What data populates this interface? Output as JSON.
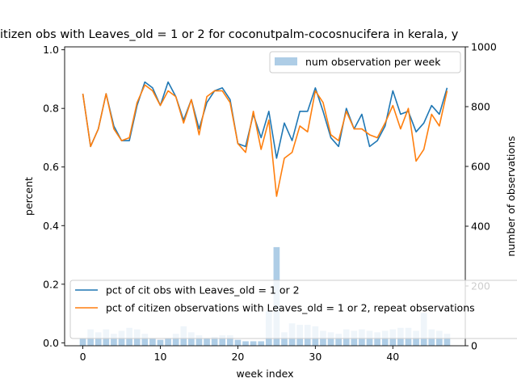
{
  "chart_data": {
    "type": "line",
    "title": "itizen obs with Leaves_old = 1 or 2 for coconutpalm-cocosnucifera in kerala, y",
    "xlabel": "week index",
    "ylabel": "percent",
    "ylabel_right": "number of observations",
    "xlim": [
      -2.35,
      49.35
    ],
    "ylim": [
      -0.01,
      1.01
    ],
    "ylim_right": [
      0,
      1000
    ],
    "x_ticks": [
      "0",
      "10",
      "20",
      "30",
      "40"
    ],
    "y_ticks": [
      "0.0",
      "0.2",
      "0.4",
      "0.6",
      "0.8",
      "1.0"
    ],
    "y_ticks_right": [
      "0",
      "200",
      "400",
      "600",
      "800",
      "1000"
    ],
    "x": [
      0,
      1,
      2,
      3,
      4,
      5,
      6,
      7,
      8,
      9,
      10,
      11,
      12,
      13,
      14,
      15,
      16,
      17,
      18,
      19,
      20,
      21,
      22,
      23,
      24,
      25,
      26,
      27,
      28,
      29,
      30,
      31,
      32,
      33,
      34,
      35,
      36,
      37,
      38,
      39,
      40,
      41,
      42,
      43,
      44,
      45,
      46,
      47
    ],
    "series": [
      {
        "name": "pct of cit obs with Leaves_old = 1 or 2",
        "color": "#1f77b4",
        "values": [
          0.85,
          0.67,
          0.73,
          0.85,
          0.74,
          0.69,
          0.69,
          0.81,
          0.89,
          0.87,
          0.81,
          0.89,
          0.84,
          0.76,
          0.83,
          0.73,
          0.82,
          0.86,
          0.87,
          0.83,
          0.68,
          0.67,
          0.78,
          0.7,
          0.79,
          0.63,
          0.75,
          0.69,
          0.79,
          0.79,
          0.87,
          0.79,
          0.7,
          0.67,
          0.8,
          0.73,
          0.78,
          0.67,
          0.69,
          0.74,
          0.86,
          0.78,
          0.79,
          0.72,
          0.75,
          0.81,
          0.78,
          0.87
        ]
      },
      {
        "name": "pct of citizen observations with Leaves_old = 1 or 2, repeat observations",
        "color": "#ff7f0e",
        "values": [
          0.85,
          0.67,
          0.73,
          0.85,
          0.73,
          0.69,
          0.7,
          0.82,
          0.88,
          0.86,
          0.81,
          0.86,
          0.84,
          0.75,
          0.83,
          0.71,
          0.84,
          0.86,
          0.86,
          0.82,
          0.68,
          0.65,
          0.79,
          0.66,
          0.76,
          0.5,
          0.63,
          0.65,
          0.74,
          0.72,
          0.86,
          0.82,
          0.71,
          0.69,
          0.79,
          0.73,
          0.73,
          0.71,
          0.7,
          0.75,
          0.81,
          0.73,
          0.8,
          0.62,
          0.66,
          0.78,
          0.74,
          0.86
        ]
      }
    ],
    "bars": {
      "name": "num observation per week",
      "color": "#aecde6",
      "values": [
        25,
        55,
        45,
        55,
        40,
        50,
        60,
        55,
        40,
        25,
        20,
        25,
        40,
        65,
        45,
        35,
        25,
        30,
        35,
        35,
        20,
        15,
        15,
        15,
        115,
        330,
        45,
        75,
        70,
        70,
        65,
        50,
        45,
        40,
        55,
        50,
        55,
        50,
        45,
        50,
        55,
        60,
        60,
        50,
        110,
        55,
        50,
        40
      ]
    },
    "legend_upper": "upper-right",
    "legend_lower": "lower-left"
  }
}
